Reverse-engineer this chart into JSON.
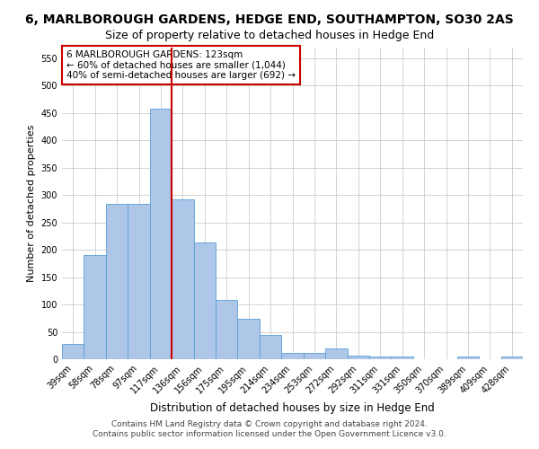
{
  "title": "6, MARLBOROUGH GARDENS, HEDGE END, SOUTHAMPTON, SO30 2AS",
  "subtitle": "Size of property relative to detached houses in Hedge End",
  "xlabel": "Distribution of detached houses by size in Hedge End",
  "ylabel": "Number of detached properties",
  "categories": [
    "39sqm",
    "58sqm",
    "78sqm",
    "97sqm",
    "117sqm",
    "136sqm",
    "156sqm",
    "175sqm",
    "195sqm",
    "214sqm",
    "234sqm",
    "253sqm",
    "272sqm",
    "292sqm",
    "311sqm",
    "331sqm",
    "350sqm",
    "370sqm",
    "389sqm",
    "409sqm",
    "428sqm"
  ],
  "values": [
    28,
    190,
    284,
    284,
    457,
    292,
    213,
    109,
    73,
    45,
    12,
    11,
    20,
    7,
    5,
    5,
    0,
    0,
    5,
    0,
    5
  ],
  "bar_color": "#aec6e8",
  "bar_edge_color": "#5a9fd4",
  "vline_x": 4.5,
  "vline_color": "#cc0000",
  "annotation_text": "6 MARLBOROUGH GARDENS: 123sqm\n← 60% of detached houses are smaller (1,044)\n40% of semi-detached houses are larger (692) →",
  "annotation_box_color": "#ffffff",
  "annotation_box_edge": "#cc0000",
  "ylim": [
    0,
    570
  ],
  "yticks": [
    0,
    50,
    100,
    150,
    200,
    250,
    300,
    350,
    400,
    450,
    500,
    550
  ],
  "footer1": "Contains HM Land Registry data © Crown copyright and database right 2024.",
  "footer2": "Contains public sector information licensed under the Open Government Licence v3.0.",
  "background_color": "#ffffff",
  "grid_color": "#cccccc",
  "title_fontsize": 10,
  "subtitle_fontsize": 9,
  "xlabel_fontsize": 8.5,
  "ylabel_fontsize": 8,
  "tick_fontsize": 7,
  "annotation_fontsize": 7.5,
  "footer_fontsize": 6.5
}
